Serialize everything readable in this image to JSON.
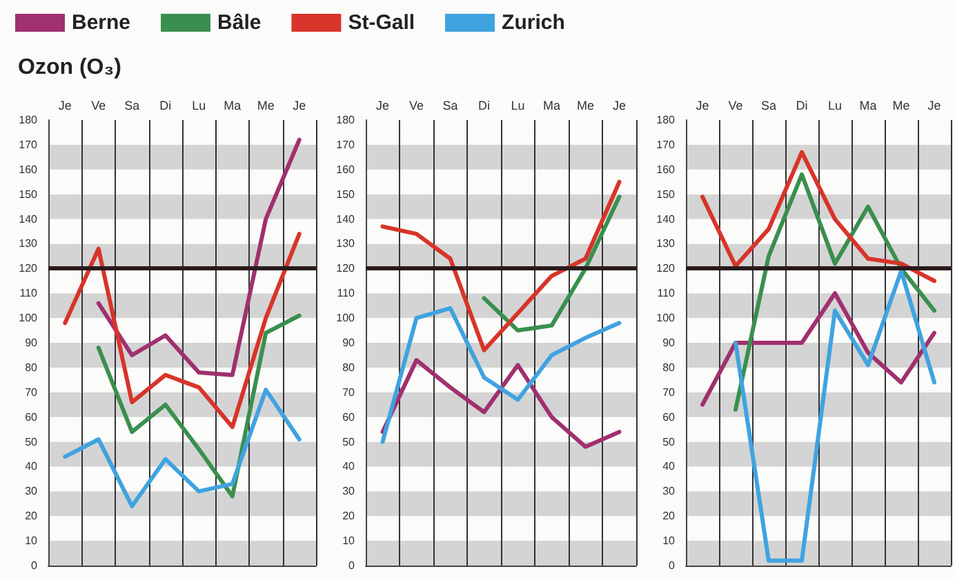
{
  "chart_data": [
    {
      "type": "line",
      "title": "Ozon (O₃)",
      "categories": [
        "Je",
        "Ve",
        "Sa",
        "Di",
        "Lu",
        "Ma",
        "Me",
        "Je"
      ],
      "ylim": [
        0,
        180
      ],
      "yticks": [
        0,
        10,
        20,
        30,
        40,
        50,
        60,
        70,
        80,
        90,
        100,
        110,
        120,
        130,
        140,
        150,
        160,
        170,
        180
      ],
      "grid": true,
      "legend": "top",
      "marker": "none",
      "line_style": "solid",
      "ref_lines": [
        {
          "axis": "y",
          "value": 120,
          "color": "#2a1a1a"
        }
      ],
      "series": [
        {
          "name": "Berne",
          "color": "#a0306f",
          "values": [
            null,
            106,
            85,
            93,
            78,
            77,
            140,
            172
          ]
        },
        {
          "name": "Bâle",
          "color": "#3a8f4e",
          "values": [
            null,
            88,
            54,
            65,
            47,
            28,
            94,
            101
          ]
        },
        {
          "name": "St-Gall",
          "color": "#d8342a",
          "values": [
            98,
            128,
            66,
            77,
            72,
            56,
            100,
            134
          ]
        },
        {
          "name": "Zurich",
          "color": "#3fa3e0",
          "values": [
            44,
            51,
            24,
            43,
            30,
            33,
            71,
            51
          ]
        }
      ]
    },
    {
      "type": "line",
      "categories": [
        "Je",
        "Ve",
        "Sa",
        "Di",
        "Lu",
        "Ma",
        "Me",
        "Je"
      ],
      "ylim": [
        0,
        180
      ],
      "yticks": [
        0,
        10,
        20,
        30,
        40,
        50,
        60,
        70,
        80,
        90,
        100,
        110,
        120,
        130,
        140,
        150,
        160,
        170,
        180
      ],
      "grid": true,
      "marker": "none",
      "line_style": "solid",
      "ref_lines": [
        {
          "axis": "y",
          "value": 120,
          "color": "#2a1a1a"
        }
      ],
      "series": [
        {
          "color": "#a0306f",
          "values": [
            54,
            83,
            72,
            62,
            81,
            60,
            48,
            54
          ]
        },
        {
          "color": "#3a8f4e",
          "values": [
            null,
            null,
            null,
            108,
            95,
            97,
            120,
            149
          ]
        },
        {
          "color": "#d8342a",
          "values": [
            137,
            134,
            124,
            87,
            102,
            117,
            124,
            155
          ]
        },
        {
          "color": "#3fa3e0",
          "values": [
            50,
            100,
            104,
            76,
            67,
            85,
            92,
            98
          ]
        }
      ]
    },
    {
      "type": "line",
      "categories": [
        "Je",
        "Ve",
        "Sa",
        "Di",
        "Lu",
        "Ma",
        "Me",
        "Je"
      ],
      "ylim": [
        0,
        180
      ],
      "yticks": [
        0,
        10,
        20,
        30,
        40,
        50,
        60,
        70,
        80,
        90,
        100,
        110,
        120,
        130,
        140,
        150,
        160,
        170,
        180
      ],
      "grid": true,
      "marker": "none",
      "line_style": "solid",
      "ref_lines": [
        {
          "axis": "y",
          "value": 120,
          "color": "#2a1a1a"
        }
      ],
      "series": [
        {
          "color": "#a0306f",
          "values": [
            65,
            90,
            90,
            90,
            110,
            86,
            74,
            94
          ]
        },
        {
          "color": "#3a8f4e",
          "values": [
            null,
            63,
            125,
            158,
            122,
            145,
            120,
            103
          ]
        },
        {
          "color": "#d8342a",
          "values": [
            149,
            121,
            136,
            167,
            140,
            124,
            122,
            115
          ]
        },
        {
          "color": "#3fa3e0",
          "values": [
            null,
            90,
            2,
            2,
            103,
            81,
            119,
            74
          ]
        }
      ]
    }
  ]
}
